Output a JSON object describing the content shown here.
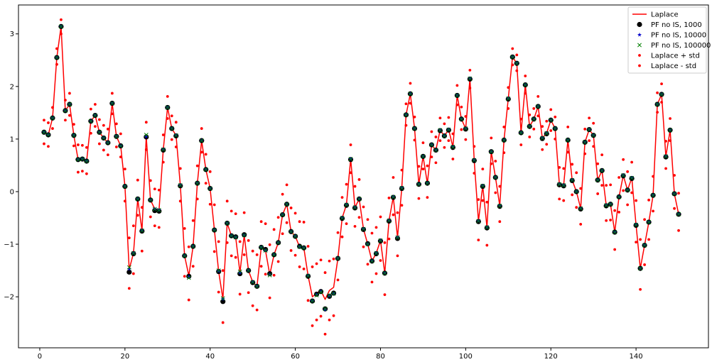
{
  "chart_data": {
    "type": "line",
    "title": "",
    "xlabel": "",
    "ylabel": "",
    "xlim": [
      -5,
      157
    ],
    "ylim": [
      -2.97,
      3.55
    ],
    "xticks": [
      0,
      20,
      40,
      60,
      80,
      100,
      120,
      140
    ],
    "yticks": [
      -2,
      -1,
      0,
      1,
      2,
      3
    ],
    "grid": false,
    "legend_position": "top-right",
    "x": [
      1,
      2,
      3,
      4,
      5,
      6,
      7,
      8,
      9,
      10,
      11,
      12,
      13,
      14,
      15,
      16,
      17,
      18,
      19,
      20,
      21,
      22,
      23,
      24,
      25,
      26,
      27,
      28,
      29,
      30,
      31,
      32,
      33,
      34,
      35,
      36,
      37,
      38,
      39,
      40,
      41,
      42,
      43,
      44,
      45,
      46,
      47,
      48,
      49,
      50,
      51,
      52,
      53,
      54,
      55,
      56,
      57,
      58,
      59,
      60,
      61,
      62,
      63,
      64,
      65,
      66,
      67,
      68,
      69,
      70,
      71,
      72,
      73,
      74,
      75,
      76,
      77,
      78,
      79,
      80,
      81,
      82,
      83,
      84,
      85,
      86,
      87,
      88,
      89,
      90,
      91,
      92,
      93,
      94,
      95,
      96,
      97,
      98,
      99,
      100,
      101,
      102,
      103,
      104,
      105,
      106,
      107,
      108,
      109,
      110,
      111,
      112,
      113,
      114,
      115,
      116,
      117,
      118,
      119,
      120,
      121,
      122,
      123,
      124,
      125,
      126,
      127,
      128,
      129,
      130,
      131,
      132,
      133,
      134,
      135,
      136,
      137,
      138,
      139,
      140,
      141,
      142,
      143,
      144,
      145,
      146,
      147,
      148,
      149,
      150
    ],
    "series": [
      {
        "name": "Laplace",
        "style": "line",
        "color": "#ff0000",
        "values": [
          1.13,
          1.08,
          1.4,
          2.55,
          3.14,
          1.54,
          1.66,
          1.07,
          0.61,
          0.62,
          0.58,
          1.34,
          1.45,
          1.13,
          1.02,
          0.93,
          1.68,
          1.05,
          0.87,
          0.1,
          -1.48,
          -1.17,
          -0.14,
          -0.74,
          1.05,
          -0.16,
          -0.33,
          -0.35,
          0.8,
          1.6,
          1.2,
          1.07,
          0.12,
          -1.22,
          -1.6,
          -1.04,
          0.16,
          0.97,
          0.42,
          0.06,
          -0.73,
          -1.52,
          -2.04,
          -0.6,
          -0.84,
          -0.87,
          -1.54,
          -0.83,
          -1.5,
          -1.72,
          -1.8,
          -1.06,
          -1.12,
          -1.58,
          -1.2,
          -0.97,
          -0.44,
          -0.24,
          -0.76,
          -0.85,
          -1.05,
          -1.07,
          -1.6,
          -2.0,
          -1.93,
          -1.88,
          -2.05,
          -1.88,
          -1.82,
          -1.27,
          -0.5,
          -0.25,
          0.62,
          -0.3,
          -0.14,
          -0.71,
          -1.0,
          -1.32,
          -1.17,
          -0.93,
          -1.55,
          -0.55,
          -0.1,
          -0.87,
          0.07,
          1.46,
          1.86,
          1.2,
          0.14,
          0.67,
          0.16,
          0.89,
          0.79,
          1.17,
          1.06,
          1.18,
          0.85,
          1.83,
          1.38,
          1.2,
          2.15,
          0.6,
          -0.56,
          0.11,
          -0.68,
          0.76,
          0.27,
          -0.27,
          0.98,
          1.77,
          2.56,
          2.44,
          1.12,
          2.03,
          1.24,
          1.38,
          1.62,
          1.02,
          1.11,
          1.36,
          1.2,
          0.14,
          0.12,
          0.98,
          0.22,
          0.0,
          -0.32,
          0.94,
          1.18,
          1.07,
          0.22,
          0.4,
          -0.26,
          -0.24,
          -0.77,
          -0.1,
          0.31,
          0.03,
          0.26,
          -0.63,
          -1.46,
          -1.02,
          -0.58,
          -0.07,
          1.66,
          1.85,
          0.67,
          1.17,
          -0.04,
          -0.43
        ]
      },
      {
        "name": "PF no IS, 1000",
        "style": "markers",
        "marker": "circle",
        "color": "#000000",
        "values": [
          1.13,
          1.08,
          1.4,
          2.55,
          3.14,
          1.54,
          1.66,
          1.07,
          0.61,
          0.62,
          0.58,
          1.34,
          1.45,
          1.13,
          1.02,
          0.93,
          1.68,
          1.05,
          0.87,
          0.1,
          -1.53,
          -1.18,
          -0.14,
          -0.75,
          1.04,
          -0.16,
          -0.36,
          -0.37,
          0.79,
          1.6,
          1.2,
          1.06,
          0.11,
          -1.22,
          -1.61,
          -1.04,
          0.16,
          0.97,
          0.42,
          0.06,
          -0.73,
          -1.52,
          -2.09,
          -0.6,
          -0.84,
          -0.86,
          -1.56,
          -0.82,
          -1.5,
          -1.73,
          -1.8,
          -1.06,
          -1.1,
          -1.56,
          -1.2,
          -0.97,
          -0.44,
          -0.24,
          -0.76,
          -0.85,
          -1.04,
          -1.07,
          -1.61,
          -2.08,
          -1.95,
          -1.9,
          -2.23,
          -1.99,
          -1.93,
          -1.27,
          -0.51,
          -0.26,
          0.61,
          -0.31,
          -0.14,
          -0.72,
          -0.99,
          -1.32,
          -1.18,
          -0.94,
          -1.55,
          -0.56,
          -0.11,
          -0.89,
          0.06,
          1.46,
          1.86,
          1.2,
          0.14,
          0.67,
          0.16,
          0.89,
          0.79,
          1.16,
          1.06,
          1.17,
          0.84,
          1.83,
          1.38,
          1.19,
          2.14,
          0.59,
          -0.57,
          0.1,
          -0.69,
          0.76,
          0.27,
          -0.28,
          0.98,
          1.76,
          2.56,
          2.44,
          1.12,
          2.03,
          1.24,
          1.38,
          1.62,
          1.01,
          1.1,
          1.36,
          1.2,
          0.13,
          0.11,
          0.98,
          0.21,
          0.0,
          -0.33,
          0.94,
          1.18,
          1.07,
          0.22,
          0.4,
          -0.27,
          -0.24,
          -0.77,
          -0.1,
          0.3,
          0.03,
          0.25,
          -0.64,
          -1.46,
          -1.02,
          -0.58,
          -0.07,
          1.66,
          1.85,
          0.66,
          1.17,
          -0.04,
          -0.43
        ]
      },
      {
        "name": "PF no IS, 10000",
        "style": "markers",
        "marker": "star",
        "color": "#0000cc",
        "values": [
          1.13,
          1.08,
          1.4,
          2.55,
          3.14,
          1.54,
          1.66,
          1.07,
          0.61,
          0.62,
          0.58,
          1.34,
          1.45,
          1.13,
          1.02,
          0.93,
          1.68,
          1.05,
          0.87,
          0.1,
          -1.47,
          -1.17,
          -0.14,
          -0.74,
          1.05,
          -0.16,
          -0.33,
          -0.35,
          0.8,
          1.6,
          1.2,
          1.07,
          0.12,
          -1.22,
          -1.62,
          -1.04,
          0.16,
          0.97,
          0.42,
          0.06,
          -0.73,
          -1.51,
          -2.04,
          -0.6,
          -0.84,
          -0.87,
          -1.54,
          -0.83,
          -1.5,
          -1.72,
          -1.8,
          -1.06,
          -1.12,
          -1.58,
          -1.2,
          -0.97,
          -0.44,
          -0.24,
          -0.76,
          -0.85,
          -1.05,
          -1.07,
          -1.6,
          -2.08,
          -1.96,
          -1.9,
          -2.24,
          -1.98,
          -1.94,
          -1.27,
          -0.5,
          -0.25,
          0.62,
          -0.3,
          -0.14,
          -0.71,
          -1.0,
          -1.32,
          -1.17,
          -0.93,
          -1.55,
          -0.55,
          -0.1,
          -0.87,
          0.07,
          1.46,
          1.86,
          1.2,
          0.14,
          0.67,
          0.16,
          0.89,
          0.79,
          1.17,
          1.06,
          1.18,
          0.85,
          1.83,
          1.38,
          1.2,
          2.15,
          0.6,
          -0.56,
          0.11,
          -0.68,
          0.76,
          0.27,
          -0.27,
          0.98,
          1.77,
          2.56,
          2.44,
          1.12,
          2.03,
          1.24,
          1.38,
          1.62,
          1.02,
          1.11,
          1.36,
          1.2,
          0.14,
          0.12,
          0.98,
          0.22,
          0.0,
          -0.32,
          0.94,
          1.18,
          1.07,
          0.22,
          0.4,
          -0.26,
          -0.24,
          -0.77,
          -0.1,
          0.31,
          0.03,
          0.26,
          -0.63,
          -1.46,
          -1.02,
          -0.58,
          -0.07,
          1.66,
          1.85,
          0.67,
          1.17,
          -0.04,
          -0.43
        ]
      },
      {
        "name": "PF no IS, 100000",
        "style": "markers",
        "marker": "x",
        "color": "#008000",
        "values": [
          1.13,
          1.08,
          1.4,
          2.55,
          3.14,
          1.54,
          1.66,
          1.07,
          0.61,
          0.62,
          0.58,
          1.34,
          1.45,
          1.13,
          1.02,
          0.93,
          1.68,
          1.05,
          0.87,
          0.1,
          -1.44,
          -1.17,
          -0.14,
          -0.74,
          1.08,
          -0.16,
          -0.33,
          -0.35,
          0.8,
          1.6,
          1.2,
          1.07,
          0.12,
          -1.22,
          -1.64,
          -1.04,
          0.16,
          0.97,
          0.42,
          0.06,
          -0.73,
          -1.5,
          -2.03,
          -0.6,
          -0.84,
          -0.87,
          -1.52,
          -0.83,
          -1.5,
          -1.72,
          -1.8,
          -1.06,
          -1.12,
          -1.59,
          -1.2,
          -0.97,
          -0.44,
          -0.24,
          -0.76,
          -0.85,
          -1.05,
          -1.07,
          -1.6,
          -2.08,
          -1.97,
          -1.91,
          -2.23,
          -1.97,
          -1.94,
          -1.27,
          -0.5,
          -0.25,
          0.62,
          -0.3,
          -0.14,
          -0.71,
          -1.0,
          -1.32,
          -1.17,
          -0.93,
          -1.55,
          -0.55,
          -0.1,
          -0.87,
          0.07,
          1.46,
          1.86,
          1.2,
          0.14,
          0.67,
          0.16,
          0.89,
          0.79,
          1.17,
          1.06,
          1.18,
          0.85,
          1.83,
          1.38,
          1.2,
          2.15,
          0.6,
          -0.56,
          0.11,
          -0.68,
          0.76,
          0.27,
          -0.27,
          0.98,
          1.77,
          2.56,
          2.44,
          1.12,
          2.03,
          1.24,
          1.38,
          1.62,
          1.02,
          1.11,
          1.36,
          1.2,
          0.14,
          0.12,
          0.98,
          0.22,
          0.0,
          -0.32,
          0.94,
          1.18,
          1.07,
          0.22,
          0.4,
          -0.26,
          -0.24,
          -0.77,
          -0.1,
          0.31,
          0.03,
          0.26,
          -0.63,
          -1.46,
          -1.02,
          -0.58,
          -0.07,
          1.66,
          1.85,
          0.67,
          1.17,
          -0.04,
          -0.43
        ]
      },
      {
        "name": "Laplace + std",
        "style": "markers",
        "marker": "dot",
        "color": "#ff0000",
        "values": [
          1.36,
          1.31,
          1.6,
          2.72,
          3.27,
          1.74,
          1.87,
          1.28,
          0.89,
          0.88,
          0.84,
          1.57,
          1.66,
          1.37,
          1.26,
          1.19,
          1.87,
          1.29,
          1.1,
          0.43,
          -0.88,
          -0.65,
          0.22,
          -0.3,
          1.32,
          0.21,
          0.05,
          0.03,
          1.08,
          1.81,
          1.44,
          1.32,
          0.44,
          -0.7,
          -1.05,
          -0.55,
          0.49,
          1.2,
          0.71,
          0.38,
          -0.25,
          -0.95,
          -1.5,
          -0.18,
          -0.37,
          -0.42,
          -0.95,
          -0.4,
          -0.93,
          -1.13,
          -1.2,
          -0.57,
          -0.61,
          -1.01,
          -0.72,
          -0.49,
          -0.05,
          0.13,
          -0.31,
          -0.41,
          -0.57,
          -0.58,
          -1.04,
          -1.43,
          -1.37,
          -1.3,
          -1.54,
          -1.32,
          -1.28,
          -0.78,
          -0.11,
          0.14,
          0.89,
          0.1,
          0.23,
          -0.29,
          -0.53,
          -0.79,
          -0.68,
          -0.48,
          -0.97,
          -0.12,
          0.27,
          -0.4,
          0.41,
          1.67,
          2.06,
          1.42,
          0.48,
          0.93,
          0.49,
          1.14,
          1.04,
          1.4,
          1.29,
          1.41,
          1.1,
          2.02,
          1.61,
          1.43,
          2.31,
          0.86,
          -0.15,
          0.43,
          -0.2,
          1.02,
          0.58,
          0.1,
          1.23,
          1.98,
          2.72,
          2.6,
          1.38,
          2.2,
          1.46,
          1.58,
          1.81,
          1.24,
          1.34,
          1.56,
          1.42,
          0.46,
          0.44,
          1.23,
          0.52,
          0.36,
          0.06,
          1.19,
          1.4,
          1.3,
          0.53,
          0.7,
          0.12,
          0.13,
          -0.36,
          0.27,
          0.61,
          0.38,
          0.56,
          -0.17,
          -0.91,
          -0.53,
          -0.16,
          0.29,
          1.88,
          2.05,
          0.96,
          1.39,
          0.31,
          -0.03
        ]
      },
      {
        "name": "Laplace - std",
        "style": "markers",
        "marker": "dot",
        "color": "#ff0000",
        "values": [
          0.91,
          0.86,
          1.2,
          2.42,
          3.0,
          1.36,
          1.45,
          0.87,
          0.37,
          0.39,
          0.34,
          1.11,
          1.24,
          0.91,
          0.79,
          0.7,
          1.48,
          0.85,
          0.66,
          -0.18,
          -1.84,
          -1.56,
          -0.45,
          -1.13,
          0.8,
          -0.48,
          -0.65,
          -0.68,
          0.56,
          1.39,
          0.99,
          0.85,
          -0.18,
          -1.61,
          -2.06,
          -1.42,
          -0.14,
          0.75,
          0.16,
          -0.24,
          -1.14,
          -1.91,
          -2.49,
          -0.97,
          -1.22,
          -1.25,
          -1.95,
          -1.2,
          -1.92,
          -2.17,
          -2.25,
          -1.42,
          -1.57,
          -2.02,
          -1.59,
          -1.33,
          -0.8,
          -0.59,
          -1.12,
          -1.21,
          -1.43,
          -1.47,
          -2.07,
          -2.55,
          -2.44,
          -2.37,
          -2.71,
          -2.44,
          -2.36,
          -1.68,
          -0.86,
          -0.61,
          0.36,
          -0.66,
          -0.49,
          -1.05,
          -1.38,
          -1.72,
          -1.56,
          -1.31,
          -1.96,
          -0.9,
          -0.44,
          -1.22,
          -0.26,
          1.26,
          1.68,
          0.98,
          -0.13,
          0.43,
          -0.11,
          0.66,
          0.55,
          0.97,
          0.84,
          0.97,
          0.62,
          1.65,
          1.18,
          0.99,
          1.97,
          0.35,
          -0.92,
          -0.17,
          -1.02,
          0.53,
          -0.02,
          -0.57,
          0.74,
          1.58,
          2.41,
          2.3,
          0.89,
          1.87,
          1.04,
          1.19,
          1.44,
          0.8,
          0.9,
          1.16,
          1.0,
          -0.14,
          -0.17,
          0.75,
          -0.06,
          -0.3,
          -0.62,
          0.72,
          0.97,
          0.86,
          -0.04,
          0.12,
          -0.55,
          -0.54,
          -1.1,
          -0.39,
          0.02,
          -0.25,
          -0.02,
          -0.96,
          -1.86,
          -1.39,
          -0.91,
          -0.37,
          1.51,
          1.7,
          0.44,
          0.97,
          -0.32,
          -0.74
        ]
      }
    ]
  }
}
